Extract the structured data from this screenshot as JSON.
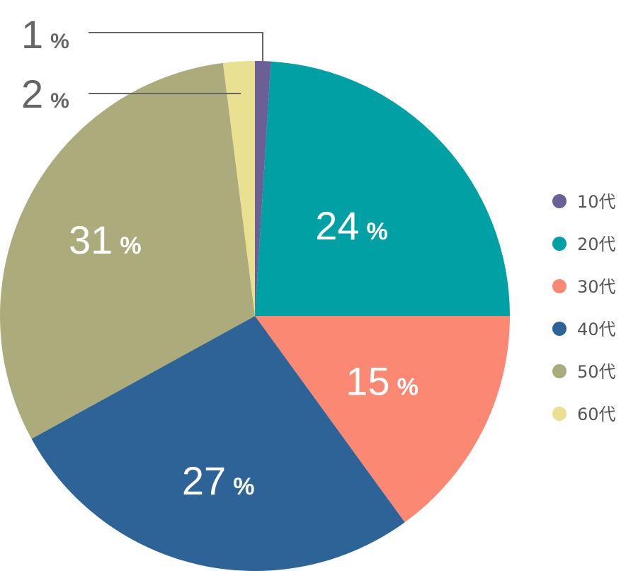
{
  "chart_data": {
    "type": "pie",
    "unit": "%",
    "categories": [
      "10代",
      "20代",
      "30代",
      "40代",
      "50代",
      "60代"
    ],
    "values": [
      1,
      24,
      15,
      27,
      31,
      2
    ],
    "colors": [
      "#6a5f96",
      "#00a0a5",
      "#fa8872",
      "#2e6398",
      "#abab7c",
      "#e9e191"
    ],
    "legend": "right",
    "labels": [
      "1",
      "24",
      "15",
      "27",
      "31",
      "2"
    ]
  }
}
